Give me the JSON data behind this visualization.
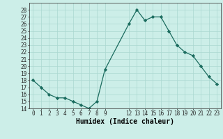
{
  "x": [
    0,
    1,
    2,
    3,
    4,
    5,
    6,
    7,
    8,
    9,
    12,
    13,
    14,
    15,
    16,
    17,
    18,
    19,
    20,
    21,
    22,
    23
  ],
  "y": [
    18,
    17,
    16,
    15.5,
    15.5,
    15,
    14.5,
    14,
    15,
    19.5,
    26,
    28,
    26.5,
    27,
    27,
    25,
    23,
    22,
    21.5,
    20,
    18.5,
    17.5
  ],
  "line_color": "#1a6b5e",
  "marker_color": "#1a6b5e",
  "bg_color": "#cceee8",
  "grid_color": "#aad8d0",
  "xlabel": "Humidex (Indice chaleur)",
  "ylim": [
    14,
    29
  ],
  "yticks": [
    14,
    15,
    16,
    17,
    18,
    19,
    20,
    21,
    22,
    23,
    24,
    25,
    26,
    27,
    28
  ],
  "xticks": [
    0,
    1,
    2,
    3,
    4,
    5,
    6,
    7,
    8,
    9,
    12,
    13,
    14,
    15,
    16,
    17,
    18,
    19,
    20,
    21,
    22,
    23
  ],
  "tick_fontsize": 5.5,
  "xlabel_fontsize": 7.0
}
